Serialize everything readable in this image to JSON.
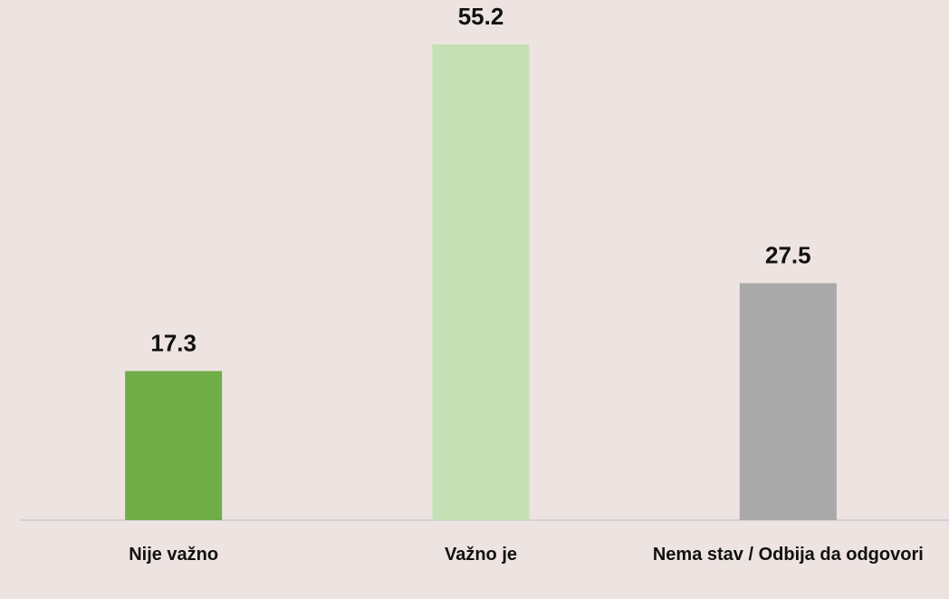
{
  "chart_data": {
    "type": "bar",
    "categories": [
      "Nije važno",
      "Važno je",
      "Nema stav / Odbija da odgovori"
    ],
    "values": [
      17.3,
      55.2,
      27.5
    ],
    "colors": [
      "#70ad47",
      "#c5e0b4",
      "#a9a9a9"
    ]
  }
}
